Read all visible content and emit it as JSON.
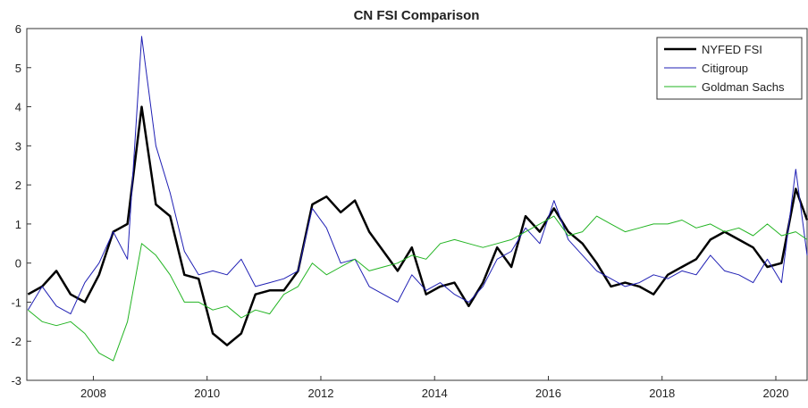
{
  "chart_data": {
    "type": "line",
    "title": "CN FSI Comparison",
    "x": [
      2006.85,
      2007.1,
      2007.35,
      2007.6,
      2007.85,
      2008.1,
      2008.35,
      2008.6,
      2008.85,
      2009.1,
      2009.35,
      2009.6,
      2009.85,
      2010.1,
      2010.35,
      2010.6,
      2010.85,
      2011.1,
      2011.35,
      2011.6,
      2011.85,
      2012.1,
      2012.35,
      2012.6,
      2012.85,
      2013.1,
      2013.35,
      2013.6,
      2013.85,
      2014.1,
      2014.35,
      2014.6,
      2014.85,
      2015.1,
      2015.35,
      2015.6,
      2015.85,
      2016.1,
      2016.35,
      2016.6,
      2016.85,
      2017.1,
      2017.35,
      2017.6,
      2017.85,
      2018.1,
      2018.35,
      2018.6,
      2018.85,
      2019.1,
      2019.35,
      2019.6,
      2019.85,
      2020.1,
      2020.35,
      2020.55
    ],
    "series": [
      {
        "name": "NYFED FSI",
        "color": "#000000",
        "width": 2.5,
        "values": [
          -0.8,
          -0.6,
          -0.2,
          -0.8,
          -1.0,
          -0.3,
          0.8,
          1.0,
          4.0,
          1.5,
          1.2,
          -0.3,
          -0.4,
          -1.8,
          -2.1,
          -1.8,
          -0.8,
          -0.7,
          -0.7,
          -0.2,
          1.5,
          1.7,
          1.3,
          1.6,
          0.8,
          0.3,
          -0.2,
          0.4,
          -0.8,
          -0.6,
          -0.5,
          -1.1,
          -0.5,
          0.4,
          -0.1,
          1.2,
          0.8,
          1.4,
          0.8,
          0.5,
          0.0,
          -0.6,
          -0.5,
          -0.6,
          -0.8,
          -0.3,
          -0.1,
          0.1,
          0.6,
          0.8,
          0.6,
          0.4,
          -0.1,
          0.0,
          1.9,
          1.1
        ]
      },
      {
        "name": "Citigroup",
        "color": "#1f1fb4",
        "width": 1,
        "values": [
          -1.2,
          -0.6,
          -1.1,
          -1.3,
          -0.5,
          0.0,
          0.8,
          0.1,
          5.8,
          3.0,
          1.8,
          0.3,
          -0.3,
          -0.2,
          -0.3,
          0.1,
          -0.6,
          -0.5,
          -0.4,
          -0.2,
          1.4,
          0.9,
          0.0,
          0.1,
          -0.6,
          -0.8,
          -1.0,
          -0.3,
          -0.7,
          -0.5,
          -0.8,
          -1.0,
          -0.6,
          0.1,
          0.3,
          0.9,
          0.5,
          1.6,
          0.6,
          0.2,
          -0.2,
          -0.4,
          -0.6,
          -0.5,
          -0.3,
          -0.4,
          -0.2,
          -0.3,
          0.2,
          -0.2,
          -0.3,
          -0.5,
          0.1,
          -0.5,
          2.4,
          0.2
        ]
      },
      {
        "name": "Goldman Sachs",
        "color": "#22b422",
        "width": 1,
        "values": [
          -1.2,
          -1.5,
          -1.6,
          -1.5,
          -1.8,
          -2.3,
          -2.5,
          -1.5,
          0.5,
          0.2,
          -0.3,
          -1.0,
          -1.0,
          -1.2,
          -1.1,
          -1.4,
          -1.2,
          -1.3,
          -0.8,
          -0.6,
          0.0,
          -0.3,
          -0.1,
          0.1,
          -0.2,
          -0.1,
          0.0,
          0.2,
          0.1,
          0.5,
          0.6,
          0.5,
          0.4,
          0.5,
          0.6,
          0.8,
          1.0,
          1.2,
          0.7,
          0.8,
          1.2,
          1.0,
          0.8,
          0.9,
          1.0,
          1.0,
          1.1,
          0.9,
          1.0,
          0.8,
          0.9,
          0.7,
          1.0,
          0.7,
          0.8,
          0.6
        ]
      }
    ],
    "xlim": [
      2006.83,
      2020.55
    ],
    "xticks": [
      2008,
      2010,
      2012,
      2014,
      2016,
      2018,
      2020
    ],
    "ylim": [
      -3,
      6
    ],
    "yticks": [
      -3,
      -2,
      -1,
      0,
      1,
      2,
      3,
      4,
      5,
      6
    ],
    "legend": "top-right"
  }
}
